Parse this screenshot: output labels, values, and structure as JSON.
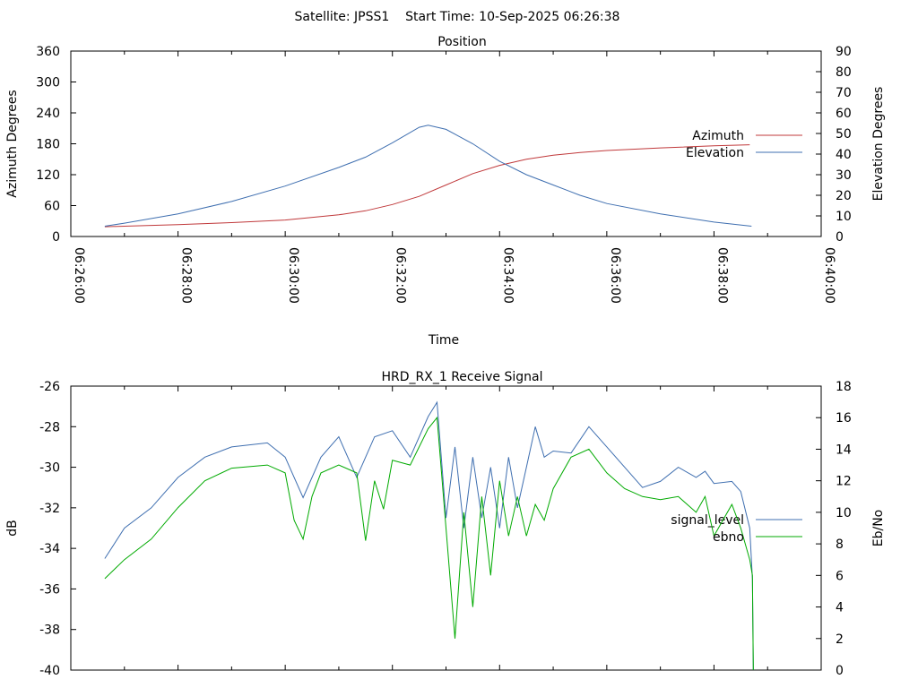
{
  "header": {
    "text": "Satellite: JPSS1    Start Time: 10-Sep-2025 06:26:38"
  },
  "chart_data": [
    {
      "type": "line",
      "title": "Position",
      "xlabel": "Time",
      "ylabel": "Azimuth Degrees",
      "y2label": "Elevation Degrees",
      "x_ticks": [
        "06:26:00",
        "06:28:00",
        "06:30:00",
        "06:32:00",
        "06:34:00",
        "06:36:00",
        "06:38:00",
        "06:40:00"
      ],
      "x_tick_seconds": [
        0,
        120,
        240,
        360,
        480,
        600,
        720,
        840
      ],
      "xlim": [
        0,
        840
      ],
      "ylim": [
        0,
        360
      ],
      "y_ticks": [
        0,
        60,
        120,
        180,
        240,
        300,
        360
      ],
      "y2lim": [
        0,
        90
      ],
      "y2_ticks": [
        0,
        10,
        20,
        30,
        40,
        50,
        60,
        70,
        80,
        90
      ],
      "legend_position": "right",
      "grid": false,
      "series": [
        {
          "name": "Azimuth",
          "axis": "left",
          "color": "#c0393b",
          "x": [
            38,
            60,
            120,
            180,
            240,
            300,
            330,
            360,
            390,
            420,
            450,
            480,
            510,
            540,
            570,
            600,
            660,
            720,
            760
          ],
          "values": [
            19,
            20,
            23,
            27,
            32,
            42,
            50,
            62,
            78,
            100,
            122,
            138,
            150,
            158,
            163,
            167,
            172,
            176,
            178
          ]
        },
        {
          "name": "Elevation",
          "axis": "right",
          "color": "#3f6fb0",
          "x": [
            38,
            60,
            120,
            180,
            240,
            300,
            330,
            360,
            390,
            400,
            420,
            450,
            480,
            510,
            540,
            570,
            600,
            660,
            720,
            762
          ],
          "values": [
            5,
            6.5,
            11,
            17,
            24.5,
            33.5,
            38.5,
            45.5,
            53,
            54,
            52,
            45,
            36.5,
            30,
            25,
            20,
            16,
            11,
            7,
            5
          ]
        }
      ]
    },
    {
      "type": "line",
      "title": "HRD_RX_1 Receive Signal",
      "xlabel": "",
      "ylabel": "dB",
      "y2label": "Eb/No",
      "xlim": [
        0,
        840
      ],
      "ylim": [
        -40,
        -26
      ],
      "y_ticks": [
        -40,
        -38,
        -36,
        -34,
        -32,
        -30,
        -28,
        -26
      ],
      "y2lim": [
        0,
        18
      ],
      "y2_ticks": [
        0,
        2,
        4,
        6,
        8,
        10,
        12,
        14,
        16,
        18
      ],
      "legend_position": "right",
      "grid": false,
      "series": [
        {
          "name": "signal_level",
          "axis": "left",
          "color": "#3f6fb0",
          "x": [
            38,
            60,
            90,
            120,
            150,
            180,
            220,
            240,
            260,
            280,
            300,
            320,
            340,
            360,
            380,
            400,
            410,
            420,
            430,
            440,
            450,
            460,
            470,
            480,
            490,
            500,
            510,
            520,
            530,
            540,
            560,
            580,
            600,
            620,
            640,
            660,
            680,
            700,
            710,
            720,
            740,
            750,
            760,
            763,
            764
          ],
          "values": [
            -34.5,
            -33,
            -32,
            -30.5,
            -29.5,
            -29,
            -28.8,
            -29.5,
            -31.5,
            -29.5,
            -28.5,
            -30.5,
            -28.5,
            -28.2,
            -29.5,
            -27.5,
            -26.8,
            -32.5,
            -29,
            -33,
            -29.5,
            -32.5,
            -30,
            -33,
            -29.5,
            -32,
            -30,
            -28,
            -29.5,
            -29.2,
            -29.3,
            -28,
            -29,
            -30,
            -31,
            -30.7,
            -30,
            -30.5,
            -30.2,
            -30.8,
            -30.7,
            -31.2,
            -33,
            -35.5,
            -40
          ]
        },
        {
          "name": "ebno",
          "axis": "right",
          "color": "#00aa00",
          "x": [
            38,
            60,
            90,
            120,
            150,
            180,
            220,
            240,
            250,
            260,
            270,
            280,
            300,
            320,
            330,
            340,
            350,
            360,
            380,
            400,
            410,
            420,
            430,
            440,
            450,
            460,
            470,
            480,
            490,
            500,
            510,
            520,
            530,
            540,
            560,
            580,
            600,
            620,
            640,
            660,
            680,
            700,
            710,
            720,
            740,
            750,
            760,
            763,
            764
          ],
          "values": [
            5.8,
            7,
            8.3,
            10.3,
            12,
            12.8,
            13,
            12.5,
            9.5,
            8.3,
            11,
            12.5,
            13,
            12.5,
            8.2,
            12,
            10.2,
            13.3,
            13,
            15.3,
            16,
            9,
            2,
            10,
            4,
            11,
            6,
            12,
            8.5,
            11,
            8.5,
            10.5,
            9.5,
            11.5,
            13.5,
            14,
            12.5,
            11.5,
            11,
            10.8,
            11,
            10,
            11,
            8.5,
            10.5,
            9,
            7,
            6,
            0
          ]
        }
      ]
    }
  ]
}
